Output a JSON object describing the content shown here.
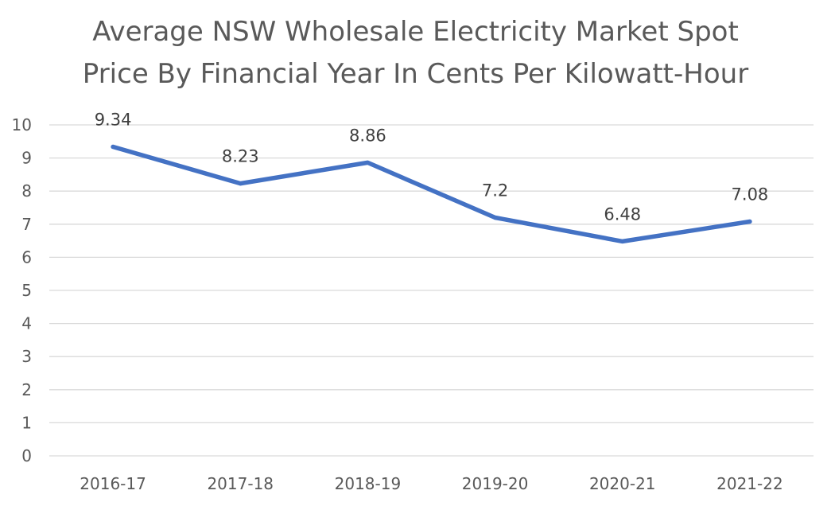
{
  "chart_data": {
    "type": "line",
    "title_lines": [
      "Average NSW Wholesale Electricity Market Spot",
      "Price By Financial Year In Cents Per Kilowatt-Hour"
    ],
    "categories": [
      "2016-17",
      "2017-18",
      "2018-19",
      "2019-20",
      "2020-21",
      "2021-22"
    ],
    "series": [
      {
        "values": [
          9.34,
          8.23,
          8.86,
          7.2,
          6.48,
          7.08
        ],
        "data_labels": [
          "9.34",
          "8.23",
          "8.86",
          "7.2",
          "6.48",
          "7.08"
        ],
        "color": "#4472C4"
      }
    ],
    "ylim": [
      0,
      10
    ],
    "yticks": [
      0,
      1,
      2,
      3,
      4,
      5,
      6,
      7,
      8,
      9,
      10
    ],
    "grid": true,
    "legend": "none",
    "colors": {
      "gridline": "#D9D9D9",
      "text": "#595959"
    }
  }
}
